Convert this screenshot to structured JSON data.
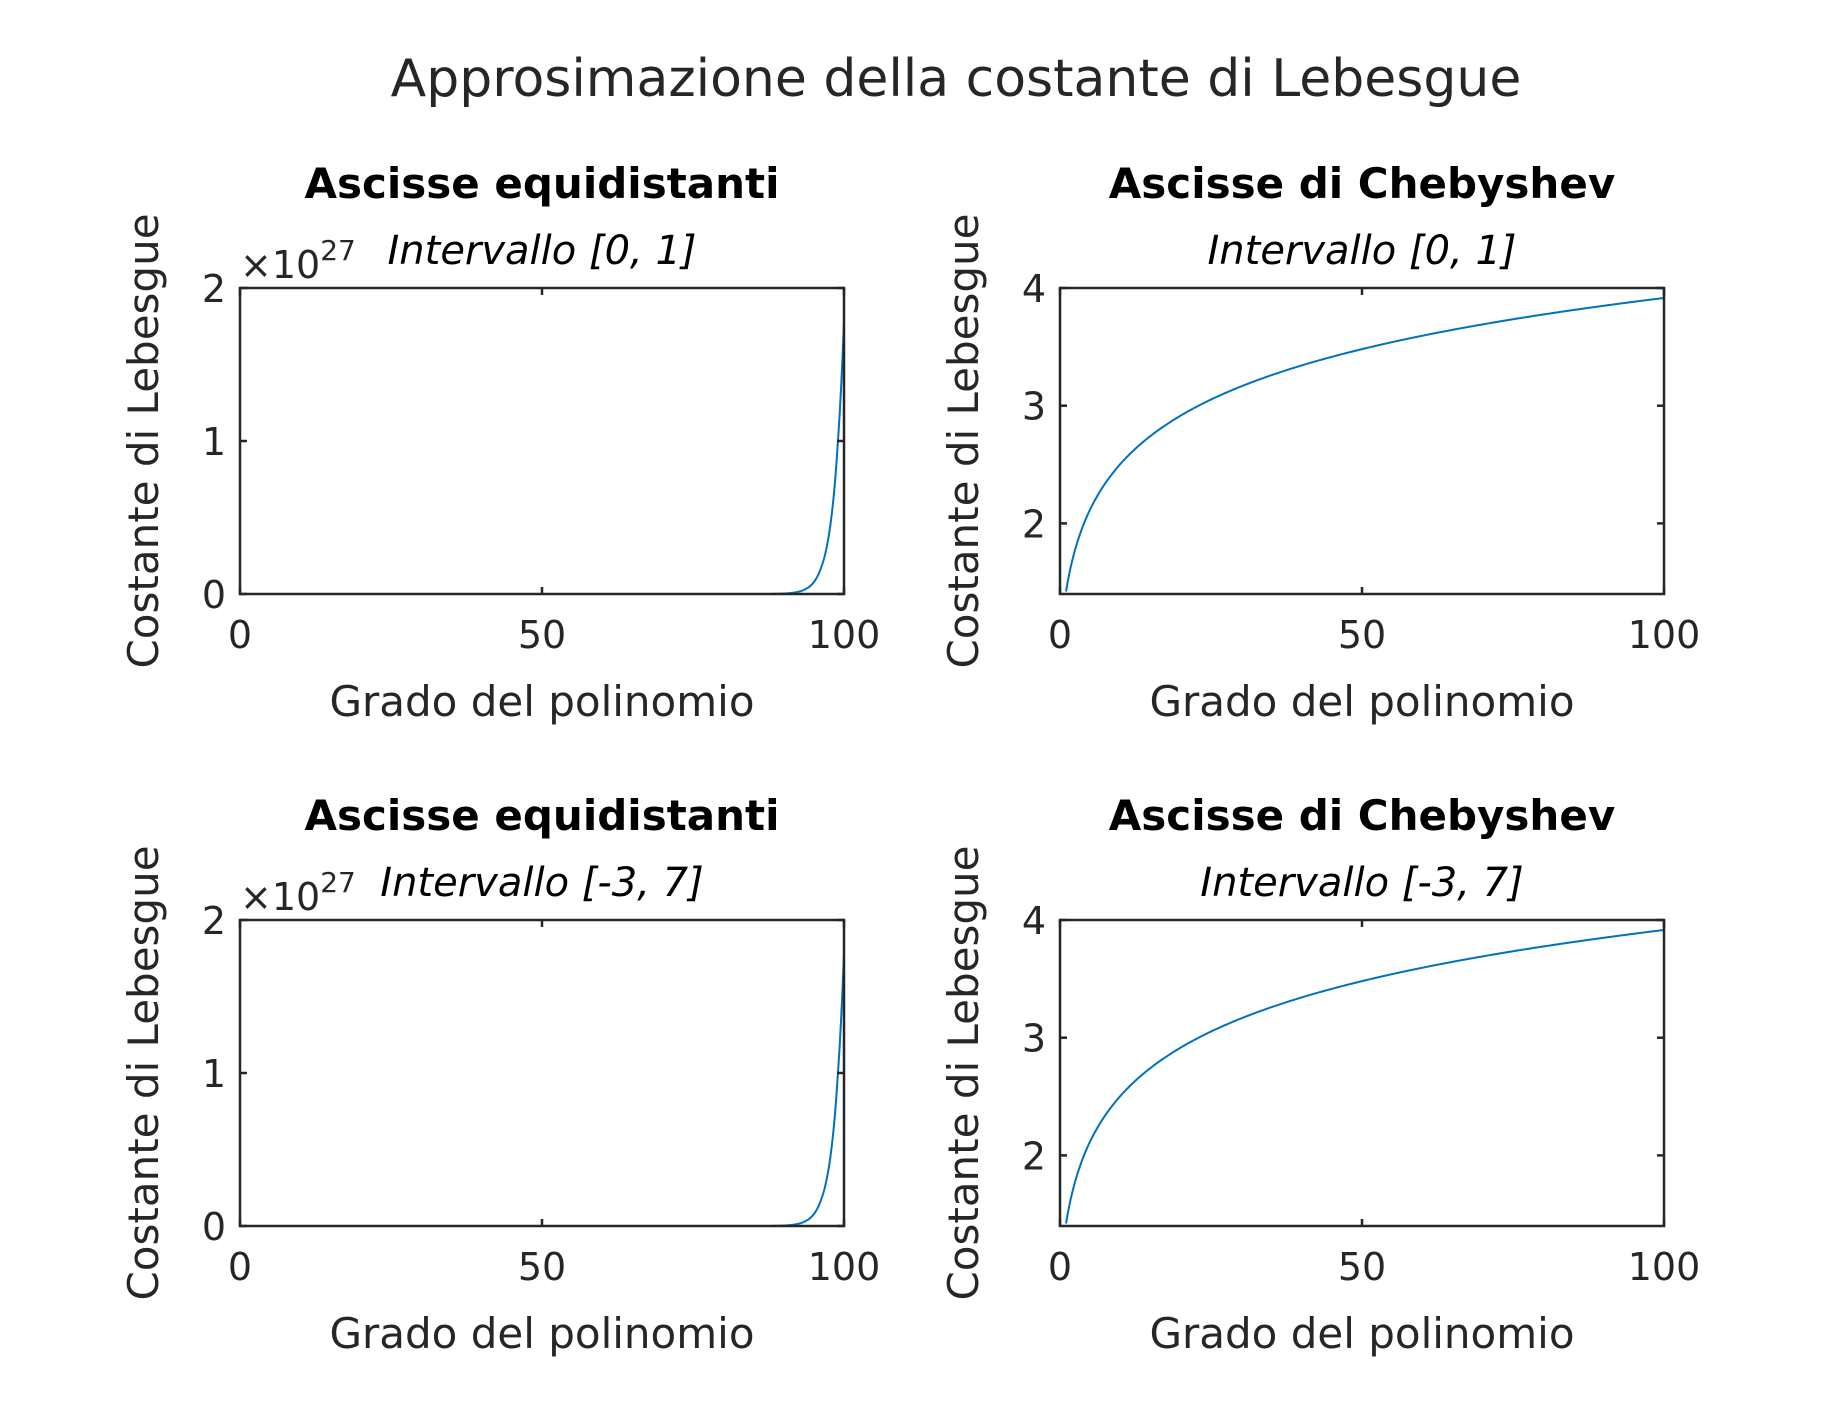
{
  "figure": {
    "title": "Approsimazione della costante di Lebesgue",
    "line_color": "#0072BD"
  },
  "chart_data": [
    {
      "type": "line",
      "title": "Ascisse equidistanti",
      "subtitle": "Intervallo [0, 1]",
      "xlabel": "Grado del polinomio",
      "ylabel": "Costante di Lebesgue",
      "xlim": [
        0,
        100
      ],
      "ylim": [
        0,
        2
      ],
      "xticks": [
        0,
        50,
        100
      ],
      "yticks": [
        0,
        1,
        2
      ],
      "y_exponent": {
        "base": "×10",
        "power": "27"
      },
      "series": [
        {
          "model": "equispaced",
          "x": [
            0,
            80,
            88,
            90,
            92,
            93,
            94,
            95,
            96,
            97,
            98,
            99,
            100
          ],
          "y": [
            0,
            0,
            0.0008,
            0.003,
            0.011,
            0.021,
            0.04,
            0.077,
            0.15,
            0.28,
            0.53,
            1.0,
            1.78
          ]
        }
      ]
    },
    {
      "type": "line",
      "title": "Ascisse di Chebyshev",
      "subtitle": "Intervallo [0, 1]",
      "xlabel": "Grado del polinomio",
      "ylabel": "Costante di Lebesgue",
      "xlim": [
        0,
        100
      ],
      "ylim": [
        1.4,
        4
      ],
      "xticks": [
        0,
        50,
        100
      ],
      "yticks": [
        2,
        3,
        4
      ],
      "series": [
        {
          "model": "chebyshev",
          "x": [
            1,
            2,
            3,
            5,
            10,
            20,
            30,
            50,
            70,
            100
          ],
          "y": [
            1.41,
            1.67,
            1.85,
            2.1,
            2.5,
            2.93,
            3.19,
            3.5,
            3.71,
            3.93
          ]
        }
      ]
    },
    {
      "type": "line",
      "title": "Ascisse equidistanti",
      "subtitle": "Intervallo [-3, 7]",
      "xlabel": "Grado del polinomio",
      "ylabel": "Costante di Lebesgue",
      "xlim": [
        0,
        100
      ],
      "ylim": [
        0,
        2
      ],
      "xticks": [
        0,
        50,
        100
      ],
      "yticks": [
        0,
        1,
        2
      ],
      "y_exponent": {
        "base": "×10",
        "power": "27"
      },
      "series": [
        {
          "model": "equispaced",
          "x": [
            0,
            80,
            88,
            90,
            92,
            93,
            94,
            95,
            96,
            97,
            98,
            99,
            100
          ],
          "y": [
            0,
            0,
            0.0008,
            0.003,
            0.011,
            0.021,
            0.04,
            0.077,
            0.15,
            0.28,
            0.53,
            1.0,
            1.78
          ]
        }
      ]
    },
    {
      "type": "line",
      "title": "Ascisse di Chebyshev",
      "subtitle": "Intervallo [-3, 7]",
      "xlabel": "Grado del polinomio",
      "ylabel": "Costante di Lebesgue",
      "xlim": [
        0,
        100
      ],
      "ylim": [
        1.4,
        4
      ],
      "xticks": [
        0,
        50,
        100
      ],
      "yticks": [
        2,
        3,
        4
      ],
      "series": [
        {
          "model": "chebyshev",
          "x": [
            1,
            2,
            3,
            5,
            10,
            20,
            30,
            50,
            70,
            100
          ],
          "y": [
            1.41,
            1.67,
            1.85,
            2.1,
            2.5,
            2.93,
            3.19,
            3.5,
            3.71,
            3.93
          ]
        }
      ]
    }
  ]
}
